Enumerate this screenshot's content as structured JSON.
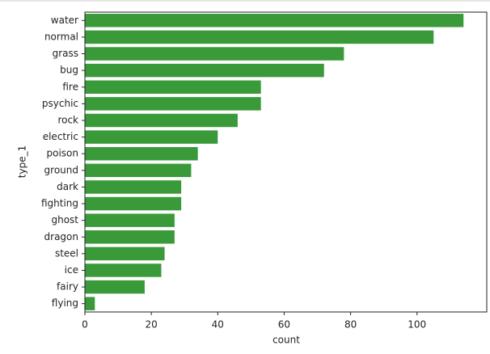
{
  "chart_data": {
    "type": "hbar",
    "categories": [
      "water",
      "normal",
      "grass",
      "bug",
      "fire",
      "psychic",
      "rock",
      "electric",
      "poison",
      "ground",
      "dark",
      "fighting",
      "ghost",
      "dragon",
      "steel",
      "ice",
      "fairy",
      "flying"
    ],
    "values": [
      114,
      105,
      78,
      72,
      53,
      53,
      46,
      40,
      34,
      32,
      29,
      29,
      27,
      27,
      24,
      23,
      18,
      3
    ],
    "color": "#3a9a3a",
    "xlim": [
      0,
      121
    ],
    "xticks": [
      0,
      20,
      40,
      60,
      80,
      100
    ],
    "xlabel": "count",
    "ylabel": "type_1"
  }
}
